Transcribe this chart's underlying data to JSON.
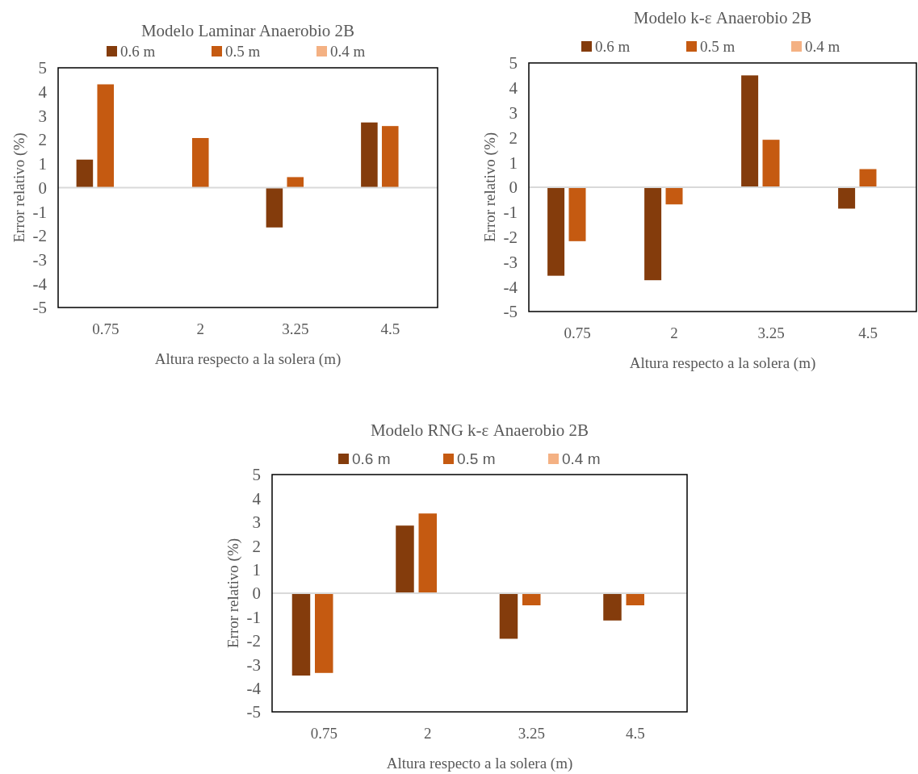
{
  "chart_data": [
    {
      "type": "bar",
      "title": "Modelo Laminar Anaerobio 2B",
      "xlabel": "Altura respecto a la solera (m)",
      "ylabel": "Error relativo (%)",
      "categories": [
        "0.75",
        "2",
        "3.25",
        "4.5"
      ],
      "series": [
        {
          "name": "0.6 m",
          "color": "#843c0c",
          "values": [
            1.17,
            null,
            -1.66,
            2.72
          ]
        },
        {
          "name": "0.5 m",
          "color": "#c55a11",
          "values": [
            4.31,
            2.07,
            0.44,
            2.57
          ]
        },
        {
          "name": "0.4 m",
          "color": "#f4b183",
          "values": [
            null,
            null,
            null,
            null
          ]
        }
      ],
      "ylim": [
        -5,
        5
      ],
      "yticks": [
        -5,
        -4,
        -3,
        -2,
        -1,
        0,
        1,
        2,
        3,
        4,
        5
      ],
      "legend": "top"
    },
    {
      "type": "bar",
      "title": "Modelo k-ε Anaerobio 2B",
      "xlabel": "Altura respecto a la solera (m)",
      "ylabel": "Error relativo (%)",
      "categories": [
        "0.75",
        "2",
        "3.25",
        "4.5"
      ],
      "series": [
        {
          "name": "0.6 m",
          "color": "#843c0c",
          "values": [
            -3.56,
            -3.74,
            4.5,
            -0.86
          ]
        },
        {
          "name": "0.5 m",
          "color": "#c55a11",
          "values": [
            -2.17,
            -0.69,
            1.91,
            0.73
          ]
        },
        {
          "name": "0.4 m",
          "color": "#f4b183",
          "values": [
            null,
            null,
            null,
            null
          ]
        }
      ],
      "ylim": [
        -5,
        5
      ],
      "yticks": [
        -5,
        -4,
        -3,
        -2,
        -1,
        0,
        1,
        2,
        3,
        4,
        5
      ],
      "legend": "top"
    },
    {
      "type": "bar",
      "title": "Modelo RNG k-ε Anaerobio 2B",
      "xlabel": "Altura respecto a la solera (m)",
      "ylabel": "Error relativo (%)",
      "categories": [
        "0.75",
        "2",
        "3.25",
        "4.5"
      ],
      "series": [
        {
          "name": "0.6 m",
          "color": "#843c0c",
          "values": [
            -3.47,
            2.85,
            -1.92,
            -1.15
          ]
        },
        {
          "name": "0.5 m",
          "color": "#c55a11",
          "values": [
            -3.36,
            3.36,
            -0.51,
            -0.51
          ]
        },
        {
          "name": "0.4 m",
          "color": "#f4b183",
          "values": [
            null,
            null,
            null,
            null
          ]
        }
      ],
      "ylim": [
        -5,
        5
      ],
      "yticks": [
        -5,
        -4,
        -3,
        -2,
        -1,
        0,
        1,
        2,
        3,
        4,
        5
      ],
      "legend": "top"
    }
  ]
}
